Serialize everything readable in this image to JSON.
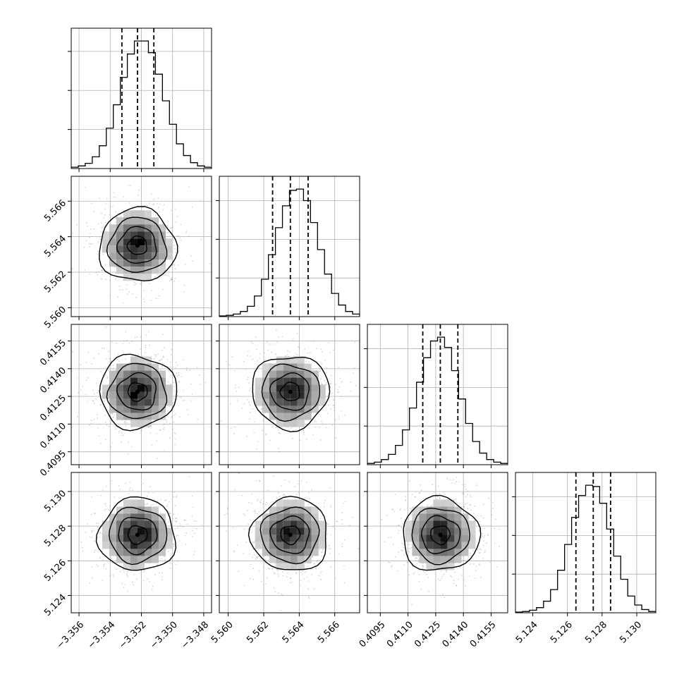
{
  "chart_data": {
    "type": "corner",
    "description_kind": "posterior corner plot of 4 parameters (1D histograms on diagonal, 2D density contours off-diagonal)",
    "grid": true,
    "params": [
      {
        "range": [
          -3.3565,
          -3.3475
        ],
        "mean": -3.35225,
        "quantiles": [
          -3.35325,
          -3.35225,
          -3.3512
        ],
        "ticks": [
          -3.356,
          -3.354,
          -3.352,
          -3.35,
          -3.348
        ],
        "tick_labels": [
          "−3.356",
          "−3.354",
          "−3.352",
          "−3.350",
          "−3.348"
        ]
      },
      {
        "range": [
          5.5595,
          5.5674
        ],
        "mean": 5.5635,
        "quantiles": [
          5.5625,
          5.5635,
          5.5645
        ],
        "ticks": [
          5.56,
          5.562,
          5.564,
          5.566
        ],
        "tick_labels": [
          "5.560",
          "5.562",
          "5.564",
          "5.566"
        ]
      },
      {
        "range": [
          0.4088,
          0.4164
        ],
        "mean": 0.41275,
        "quantiles": [
          0.4118,
          0.41275,
          0.4137
        ],
        "ticks": [
          0.4095,
          0.411,
          0.4125,
          0.414,
          0.4155
        ],
        "tick_labels": [
          "0.4095",
          "0.4110",
          "0.4125",
          "0.4140",
          "0.4155"
        ]
      },
      {
        "range": [
          5.123,
          5.1311
        ],
        "mean": 5.1275,
        "quantiles": [
          5.12649,
          5.12749,
          5.12849
        ],
        "ticks": [
          5.124,
          5.126,
          5.128,
          5.13
        ],
        "tick_labels": [
          "5.124",
          "5.126",
          "5.128",
          "5.130"
        ]
      }
    ],
    "histograms": [
      {
        "param": 0,
        "bin_edges": [
          -3.3565,
          -3.3475
        ],
        "counts": [
          2,
          4,
          8,
          18,
          35,
          62,
          98,
          140,
          176,
          196,
          196,
          178,
          145,
          104,
          68,
          38,
          20,
          9,
          4,
          2
        ]
      },
      {
        "param": 1,
        "bin_edges": [
          5.5595,
          5.5674
        ],
        "counts": [
          1,
          2,
          4,
          8,
          16,
          32,
          58,
          96,
          138,
          172,
          196,
          198,
          180,
          146,
          104,
          66,
          36,
          18,
          8,
          4
        ]
      },
      {
        "param": 2,
        "bin_edges": [
          0.4088,
          0.4164
        ],
        "counts": [
          2,
          4,
          8,
          16,
          30,
          54,
          88,
          128,
          166,
          192,
          198,
          182,
          146,
          102,
          64,
          36,
          18,
          8,
          4,
          2
        ]
      },
      {
        "param": 3,
        "bin_edges": [
          5.123,
          5.1311
        ],
        "counts": [
          1,
          2,
          4,
          8,
          18,
          36,
          66,
          106,
          148,
          182,
          198,
          196,
          170,
          130,
          88,
          52,
          26,
          12,
          5,
          2
        ]
      }
    ],
    "contour_levels": [
      0.5,
      1.0,
      1.5,
      2.0
    ]
  }
}
